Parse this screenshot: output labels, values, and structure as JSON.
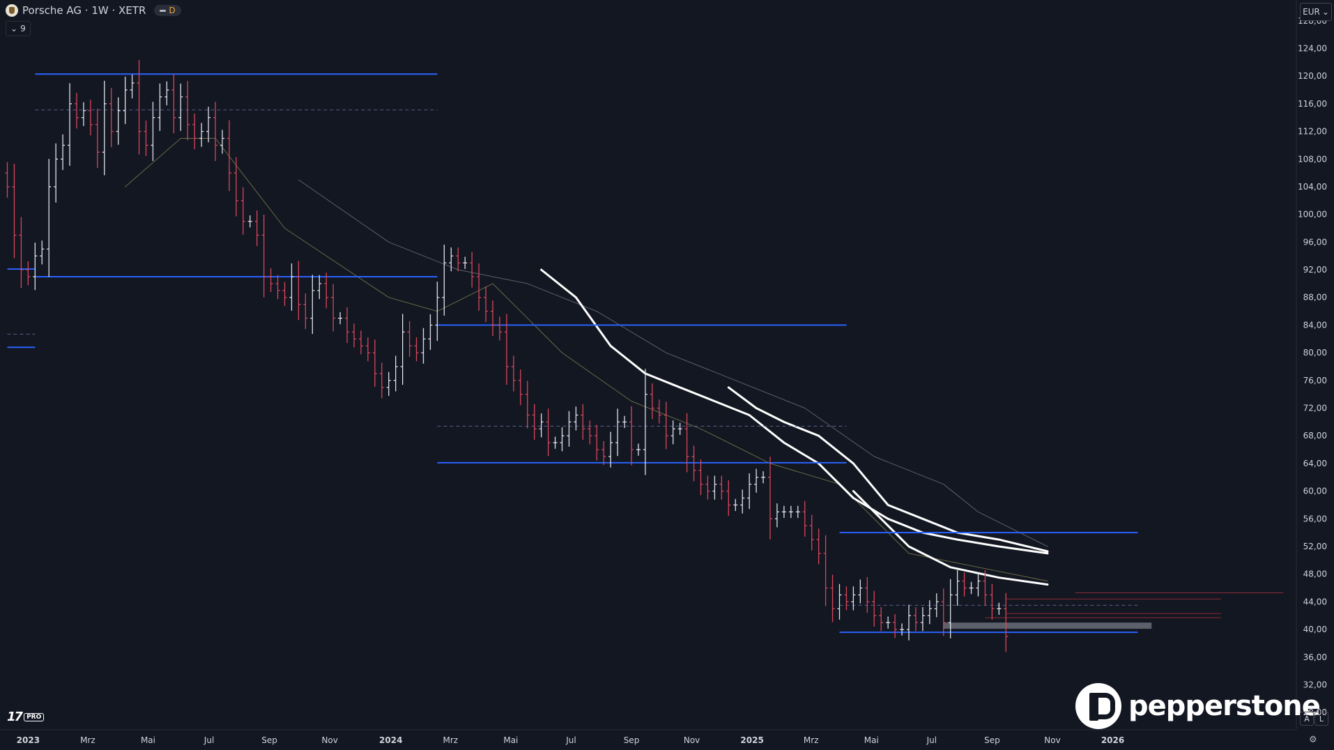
{
  "header": {
    "symbol_title": "Porsche AG · 1W · XETR",
    "interval_badge": "D",
    "indicator_count": "9"
  },
  "currency": {
    "label": "EUR"
  },
  "branding": {
    "tv_logo": "17",
    "tv_pro": "PRO",
    "broker": "pepperstone"
  },
  "scale_buttons": {
    "auto": "A",
    "log": "L"
  },
  "colors": {
    "background": "#131722",
    "bull_bar": "#e0e3eb",
    "bear_bar": "#d9465a",
    "level_line": "#2962ff",
    "ma_white": "#ffffff",
    "ma_olive": "#6b6a45",
    "ma_grey": "#5d606b",
    "range_box": "#6a6d78"
  },
  "chart_data": {
    "type": "ohlc",
    "title": "",
    "instrument": "Porsche AG",
    "interval": "1W",
    "exchange": "XETR",
    "currency": "EUR",
    "ylim": [
      25.5,
      131
    ],
    "y_ticks": [
      "28,00",
      "32,00",
      "36,00",
      "40,00",
      "44,00",
      "48,00",
      "52,00",
      "56,00",
      "60,00",
      "64,00",
      "68,00",
      "72,00",
      "76,00",
      "80,00",
      "84,00",
      "88,00",
      "92,00",
      "96,00",
      "100,00",
      "104,00",
      "108,00",
      "112,00",
      "116,00",
      "120,00",
      "124,00",
      "128,00"
    ],
    "x_ticks": [
      {
        "label": "2023",
        "week": 3
      },
      {
        "label": "Mrz",
        "week": 11.6
      },
      {
        "label": "Mai",
        "week": 20.3
      },
      {
        "label": "Jul",
        "week": 29.1
      },
      {
        "label": "Sep",
        "week": 37.8
      },
      {
        "label": "Nov",
        "week": 46.5
      },
      {
        "label": "2024",
        "week": 55.3
      },
      {
        "label": "Mrz",
        "week": 63.9
      },
      {
        "label": "Mai",
        "week": 72.6
      },
      {
        "label": "Jul",
        "week": 81.3
      },
      {
        "label": "Sep",
        "week": 90
      },
      {
        "label": "Nov",
        "week": 98.7
      },
      {
        "label": "2025",
        "week": 107.4
      },
      {
        "label": "Mrz",
        "week": 115.9
      },
      {
        "label": "Mai",
        "week": 124.6
      },
      {
        "label": "Jul",
        "week": 133.3
      },
      {
        "label": "Sep",
        "week": 142
      },
      {
        "label": "Nov",
        "week": 150.7
      },
      {
        "label": "2026",
        "week": 159.4
      }
    ],
    "close": [
      104,
      97,
      92,
      91,
      94,
      95,
      104,
      108,
      110,
      116,
      114,
      115,
      113,
      109,
      116,
      112,
      115,
      118,
      119,
      112,
      110,
      114,
      117,
      118,
      114,
      117,
      113,
      111,
      112,
      114,
      110,
      111,
      106,
      102,
      99,
      99,
      97,
      91,
      90,
      89,
      88,
      91,
      87,
      85,
      89,
      90,
      88,
      85,
      85,
      83,
      82,
      81,
      80,
      77,
      75,
      76,
      78,
      83,
      81,
      80,
      82,
      84,
      88,
      93,
      94,
      93,
      93,
      91,
      88,
      86,
      84,
      83,
      78,
      76,
      74,
      71,
      69,
      70,
      67,
      67,
      68,
      70,
      71,
      69,
      68,
      66,
      65,
      67,
      70,
      70,
      66,
      66,
      74,
      72,
      71,
      68,
      69,
      69,
      65,
      63,
      61,
      60,
      61,
      60,
      58,
      58,
      59,
      61,
      62,
      62,
      56,
      57,
      57,
      57,
      57,
      55,
      53,
      51,
      46,
      43,
      45,
      44,
      45,
      46,
      44,
      42,
      41,
      41,
      40,
      40,
      42,
      41,
      42,
      43,
      44,
      41,
      45,
      47,
      46,
      46,
      47,
      45,
      43,
      43,
      39
    ],
    "levels": [
      {
        "price": 120.3,
        "from_week": 4,
        "to_week": 62
      },
      {
        "price": 91,
        "from_week": 4,
        "to_week": 62
      },
      {
        "price": 92.1,
        "from_week": 0,
        "to_week": 4
      },
      {
        "price": 80.8,
        "from_week": 0,
        "to_week": 4
      },
      {
        "price": 84,
        "from_week": 62,
        "to_week": 121
      },
      {
        "price": 64.1,
        "from_week": 62,
        "to_week": 121
      },
      {
        "price": 54,
        "from_week": 120,
        "to_week": 163
      },
      {
        "price": 39.6,
        "from_week": 120,
        "to_week": 163
      }
    ],
    "dashed_levels": [
      {
        "price": 115.1,
        "from_week": 4,
        "to_week": 62
      },
      {
        "price": 82.7,
        "from_week": 0,
        "to_week": 4
      },
      {
        "price": 69.4,
        "from_week": 62,
        "to_week": 121
      },
      {
        "price": 43.5,
        "from_week": 120,
        "to_week": 163
      }
    ],
    "red_levels": [
      {
        "price": 45.3,
        "from_week": 154,
        "to_week": 184
      },
      {
        "price": 44.4,
        "from_week": 144,
        "to_week": 175
      },
      {
        "price": 42.3,
        "from_week": 144,
        "to_week": 175
      },
      {
        "price": 41.7,
        "from_week": 141,
        "to_week": 175
      }
    ],
    "range_box": {
      "from_week": 135,
      "to_week": 165,
      "low": 40.1,
      "high": 41.0
    },
    "moving_averages": [
      {
        "color": "ma_olive",
        "width": 1,
        "points": [
          [
            17,
            104
          ],
          [
            25,
            111
          ],
          [
            30,
            111
          ],
          [
            40,
            98
          ],
          [
            55,
            88
          ],
          [
            62,
            86
          ],
          [
            70,
            90
          ],
          [
            80,
            80
          ],
          [
            90,
            73
          ],
          [
            100,
            69
          ],
          [
            110,
            64
          ],
          [
            120,
            61
          ],
          [
            130,
            51
          ],
          [
            150,
            47
          ]
        ]
      },
      {
        "color": "ma_grey",
        "width": 1,
        "points": [
          [
            42,
            105
          ],
          [
            55,
            96
          ],
          [
            65,
            92
          ],
          [
            75,
            90
          ],
          [
            85,
            86
          ],
          [
            95,
            80
          ],
          [
            105,
            76
          ],
          [
            115,
            72
          ],
          [
            125,
            65
          ],
          [
            135,
            61
          ],
          [
            140,
            57
          ],
          [
            150,
            52
          ]
        ]
      },
      {
        "color": "ma_white",
        "width": 3,
        "points": [
          [
            77,
            92
          ],
          [
            82,
            88
          ],
          [
            87,
            81
          ],
          [
            92,
            77
          ],
          [
            97,
            75
          ],
          [
            102,
            73
          ],
          [
            107,
            71
          ],
          [
            112,
            67
          ],
          [
            117,
            64
          ],
          [
            122,
            59
          ],
          [
            127,
            56
          ],
          [
            132,
            54
          ],
          [
            137,
            53
          ],
          [
            143,
            52
          ],
          [
            150,
            51
          ]
        ]
      },
      {
        "color": "ma_white",
        "width": 3,
        "points": [
          [
            104,
            75
          ],
          [
            108,
            72
          ],
          [
            112,
            70
          ],
          [
            117,
            68
          ],
          [
            122,
            64
          ],
          [
            127,
            58
          ],
          [
            132,
            56
          ],
          [
            137,
            54
          ],
          [
            143,
            53
          ],
          [
            150,
            51.3
          ]
        ]
      },
      {
        "color": "ma_white",
        "width": 3,
        "points": [
          [
            122,
            60
          ],
          [
            125,
            57
          ],
          [
            130,
            52
          ],
          [
            136,
            49
          ],
          [
            143,
            47.5
          ],
          [
            150,
            46.5
          ]
        ]
      }
    ]
  }
}
